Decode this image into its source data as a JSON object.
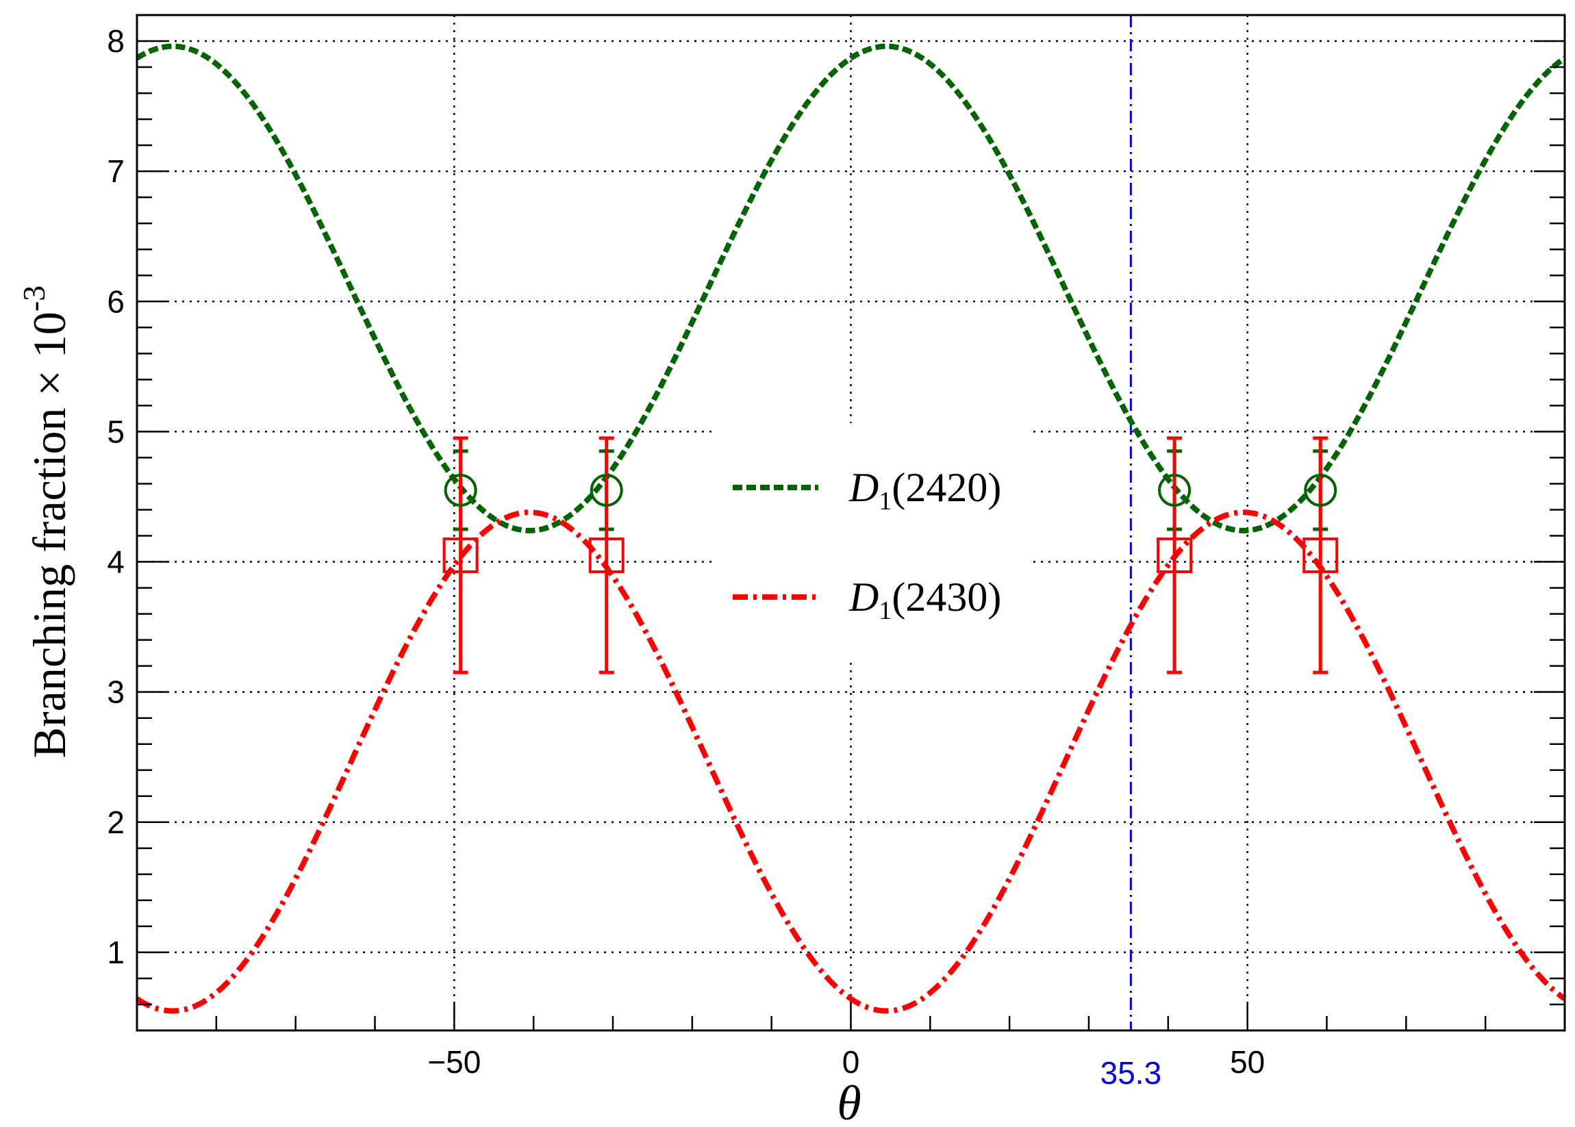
{
  "chart_data": {
    "type": "line",
    "title": "",
    "xlabel": "θ",
    "ylabel": "Branching fraction × 10",
    "ylabel_exponent": "-3",
    "xlim": [
      -90,
      90
    ],
    "ylim": [
      0.4,
      8.2
    ],
    "x_ticks": [
      {
        "value": -50,
        "label": "−50"
      },
      {
        "value": 0,
        "label": "0"
      },
      {
        "value": 50,
        "label": "50"
      }
    ],
    "y_ticks": [
      1,
      2,
      3,
      4,
      5,
      6,
      7,
      8
    ],
    "grid": true,
    "legend_position": "center",
    "series": [
      {
        "legend_prefix": "D",
        "legend_subscript": "1",
        "legend_suffix": "(2420)",
        "color": "#006400",
        "style": "dashed",
        "function": {
          "A": 6.1,
          "B": 1.86,
          "period_deg": 90,
          "phase_deg": 4.5
        },
        "markers": {
          "shape": "circle",
          "points": [
            {
              "x": -49.2,
              "y": 4.55,
              "err": 0.3
            },
            {
              "x": -30.8,
              "y": 4.55,
              "err": 0.3
            },
            {
              "x": 40.8,
              "y": 4.55,
              "err": 0.3
            },
            {
              "x": 59.2,
              "y": 4.55,
              "err": 0.3
            }
          ]
        }
      },
      {
        "legend_prefix": "D",
        "legend_subscript": "1",
        "legend_suffix": "(2430)",
        "color": "#ff0000",
        "style": "dash-dot",
        "function": {
          "A": 2.465,
          "B": -1.915,
          "period_deg": 90,
          "phase_deg": 4.5
        },
        "markers": {
          "shape": "square",
          "points": [
            {
              "x": -49.2,
              "y": 4.05,
              "err": 0.9
            },
            {
              "x": -30.8,
              "y": 4.05,
              "err": 0.9
            },
            {
              "x": 40.8,
              "y": 4.05,
              "err": 0.9
            },
            {
              "x": 59.2,
              "y": 4.05,
              "err": 0.9
            }
          ]
        }
      }
    ],
    "vertical_line": {
      "x": 35.3,
      "label": "35.3",
      "color": "#0000ee",
      "style": "dash-dot"
    }
  }
}
